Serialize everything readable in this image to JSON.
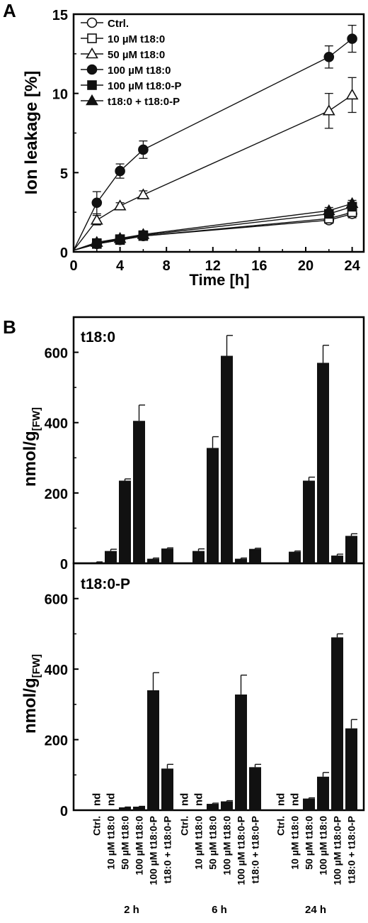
{
  "panels": {
    "a_label": "A",
    "b_label": "B"
  },
  "chart_data": [
    {
      "type": "line",
      "panel": "A",
      "xlabel": "Time [h]",
      "ylabel": "Ion leakage [%]",
      "xlim": [
        0,
        25
      ],
      "ylim": [
        0,
        15
      ],
      "xticks": [
        0,
        4,
        8,
        12,
        16,
        20,
        24
      ],
      "yticks": [
        0,
        5,
        10,
        15
      ],
      "legend_position": "top-left",
      "x": [
        0,
        2,
        4,
        6,
        22,
        24
      ],
      "series": [
        {
          "name": "Ctrl.",
          "marker": "circle-open",
          "values": [
            0.1,
            0.5,
            0.75,
            1.0,
            2.0,
            2.4
          ],
          "errors": [
            0,
            0.15,
            0.15,
            0.15,
            0.2,
            0.25
          ]
        },
        {
          "name": "10 µM t18:0",
          "marker": "square-open",
          "values": [
            0.1,
            0.5,
            0.75,
            1.0,
            2.1,
            2.5
          ],
          "errors": [
            0,
            0.15,
            0.15,
            0.15,
            0.2,
            0.25
          ]
        },
        {
          "name": "50 µM t18:0",
          "marker": "triangle-open",
          "values": [
            0.1,
            2.0,
            2.9,
            3.6,
            8.9,
            9.9
          ],
          "errors": [
            0,
            0.3,
            0.2,
            0.25,
            1.1,
            1.1
          ]
        },
        {
          "name": "100 µM t18:0",
          "marker": "circle-filled",
          "values": [
            0.1,
            3.1,
            5.1,
            6.45,
            12.3,
            13.45
          ],
          "errors": [
            0,
            0.7,
            0.45,
            0.55,
            0.7,
            0.85
          ]
        },
        {
          "name": "100 µM t18:0-P",
          "marker": "square-filled",
          "values": [
            0.1,
            0.55,
            0.8,
            1.05,
            2.4,
            2.85
          ],
          "errors": [
            0,
            0.15,
            0.15,
            0.15,
            0.2,
            0.2
          ]
        },
        {
          "name": "t18:0 + t18:0-P",
          "marker": "triangle-filled",
          "values": [
            0.1,
            0.6,
            0.85,
            1.1,
            2.6,
            3.05
          ],
          "errors": [
            0,
            0.15,
            0.15,
            0.15,
            0.2,
            0.2
          ]
        }
      ]
    },
    {
      "type": "bar",
      "panel": "B",
      "title": "t18:0",
      "ylabel": "nmol/g",
      "ylabel_sub": "[FW]",
      "ylim": [
        0,
        700
      ],
      "yticks": [
        0,
        200,
        400,
        600
      ],
      "categories": [
        "Ctrl.",
        "10 µM t18:0",
        "50 µM t18:0",
        "100 µM t18:0",
        "100 µM t18:0-P",
        "t18:0 + t18:0-P"
      ],
      "groups": [
        {
          "name": "2 h",
          "values": [
            3,
            35,
            235,
            405,
            13,
            42
          ],
          "errors": [
            1,
            5,
            5,
            45,
            2,
            2
          ],
          "labels": [
            "",
            "",
            "",
            "",
            "",
            ""
          ]
        },
        {
          "name": "6 h",
          "values": [
            null,
            35,
            328,
            590,
            13,
            41
          ],
          "errors": [
            0,
            6,
            32,
            58,
            2,
            2
          ],
          "labels": [
            "",
            "",
            "",
            "",
            "",
            ""
          ]
        },
        {
          "name": "24 h",
          "values": [
            null,
            33,
            235,
            570,
            22,
            78
          ],
          "errors": [
            0,
            2,
            10,
            50,
            4,
            6
          ],
          "labels": [
            "",
            "",
            "",
            "",
            "",
            ""
          ]
        }
      ]
    },
    {
      "type": "bar",
      "panel": "B",
      "title": "t18:0-P",
      "ylabel": "nmol/g",
      "ylabel_sub": "[FW]",
      "ylim": [
        0,
        700
      ],
      "yticks": [
        0,
        200,
        400,
        600
      ],
      "categories": [
        "Ctrl.",
        "10 µM t18:0",
        "50 µM t18:0",
        "100 µM t18:0",
        "100 µM t18:0-P",
        "t18:0 + t18:0-P"
      ],
      "groups": [
        {
          "name": "2 h",
          "values": [
            null,
            null,
            8,
            10,
            340,
            118
          ],
          "errors": [
            0,
            0,
            1,
            1,
            50,
            12
          ],
          "labels": [
            "nd",
            "nd",
            "",
            "",
            "",
            ""
          ]
        },
        {
          "name": "6 h",
          "values": [
            null,
            null,
            18,
            25,
            328,
            122
          ],
          "errors": [
            0,
            0,
            2,
            2,
            55,
            8
          ],
          "labels": [
            "nd",
            "nd",
            "",
            "",
            "",
            ""
          ]
        },
        {
          "name": "24 h",
          "values": [
            null,
            null,
            33,
            95,
            490,
            232
          ],
          "errors": [
            0,
            0,
            2,
            12,
            10,
            25
          ],
          "labels": [
            "nd",
            "nd",
            "",
            "",
            "",
            ""
          ]
        }
      ]
    }
  ]
}
